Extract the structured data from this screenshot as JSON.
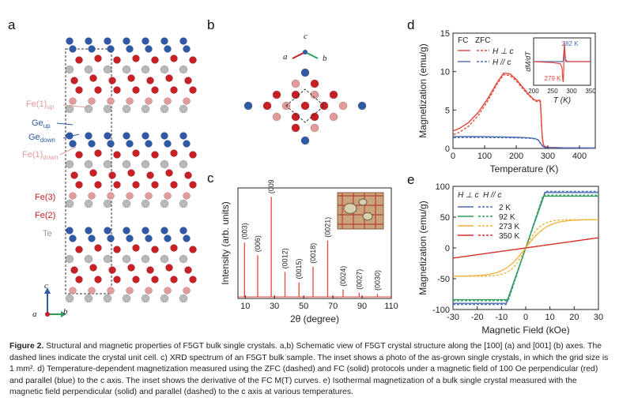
{
  "panels": {
    "a": "a",
    "b": "b",
    "c": "c",
    "d": "d",
    "e": "e"
  },
  "panel_a": {
    "labels": {
      "fe1_up": "Fe(1)",
      "fe1_up_sub": "up",
      "ge_up": "Ge",
      "ge_up_sub": "up",
      "ge_down": "Ge",
      "ge_down_sub": "down",
      "fe1_down": "Fe(1)",
      "fe1_down_sub": "down",
      "fe3": "Fe(3)",
      "fe2": "Fe(2)",
      "te": "Te"
    },
    "axes": {
      "c": "c",
      "a": "a",
      "b": "b"
    }
  },
  "panel_b": {
    "axes": {
      "c": "c",
      "a": "a",
      "b": "b"
    }
  },
  "colors": {
    "fe1": "#e39a9a",
    "fe": "#c81e24",
    "ge": "#2f5aa8",
    "te": "#b8b8b8",
    "fc_red": "#e8473a",
    "blue": "#4a6bb5",
    "green": "#2f9e5a",
    "orange": "#f2b136",
    "red350": "#d6302a",
    "xrd": "#e8473a"
  },
  "chart_data": [
    {
      "type": "bar",
      "panel": "c",
      "title": "",
      "xlabel": "2θ (degree)",
      "ylabel": "Intensity (arb. units)",
      "xlim": [
        5,
        110
      ],
      "xticks": [
        10,
        30,
        50,
        70,
        90,
        110
      ],
      "xtick_labels": [
        "10",
        "30",
        "50",
        "70",
        "90",
        "110"
      ],
      "peaks": [
        {
          "x": 9.5,
          "h": 0.52,
          "label": "(003)"
        },
        {
          "x": 18.5,
          "h": 0.4,
          "label": "(006)"
        },
        {
          "x": 27.8,
          "h": 0.96,
          "label": "(009)"
        },
        {
          "x": 37.2,
          "h": 0.24,
          "label": "(0012)"
        },
        {
          "x": 46.8,
          "h": 0.14,
          "label": "(0015)"
        },
        {
          "x": 56.4,
          "h": 0.29,
          "label": "(0018)"
        },
        {
          "x": 66.4,
          "h": 0.54,
          "label": "(0021)"
        },
        {
          "x": 77.0,
          "h": 0.07,
          "label": "(0024)"
        },
        {
          "x": 88.0,
          "h": 0.04,
          "label": "(0027)"
        },
        {
          "x": 100.5,
          "h": 0.03,
          "label": "(0030)"
        }
      ]
    },
    {
      "type": "line",
      "panel": "d",
      "xlabel": "Temperature (K)",
      "ylabel": "Magnetization (emu/g)",
      "xlim": [
        0,
        450
      ],
      "ylim": [
        0,
        15
      ],
      "xticks": [
        0,
        100,
        200,
        300,
        400
      ],
      "yticks": [
        0,
        5,
        10,
        15
      ],
      "legend": {
        "fc": "FC",
        "zfc": "ZFC",
        "perp": "H ⊥ c",
        "par": "H // c"
      },
      "series": [
        {
          "name": "H⊥c FC",
          "style": "solid",
          "color": "#e8473a",
          "x": [
            2,
            20,
            50,
            80,
            110,
            140,
            160,
            180,
            200,
            220,
            240,
            255,
            265,
            272,
            276,
            278,
            280,
            283,
            286,
            290,
            300,
            350,
            450
          ],
          "y": [
            2.3,
            2.6,
            3.4,
            4.7,
            6.5,
            8.6,
            9.8,
            9.7,
            9.0,
            8.0,
            7.0,
            6.4,
            6.2,
            6.3,
            6.2,
            5.0,
            3.0,
            1.2,
            0.5,
            0.25,
            0.15,
            0.08,
            0.05
          ]
        },
        {
          "name": "H⊥c ZFC",
          "style": "dashed",
          "color": "#e8473a",
          "x": [
            2,
            20,
            50,
            80,
            110,
            140,
            160,
            180,
            200,
            220,
            240,
            255,
            265,
            272,
            276,
            278,
            280,
            283,
            286,
            290,
            300,
            350,
            450
          ],
          "y": [
            1.8,
            2.1,
            2.9,
            4.3,
            6.2,
            8.4,
            9.6,
            9.5,
            8.8,
            7.8,
            6.9,
            6.3,
            6.1,
            6.2,
            6.1,
            4.9,
            2.9,
            1.2,
            0.5,
            0.25,
            0.15,
            0.08,
            0.05
          ]
        },
        {
          "name": "H//c FC",
          "style": "solid",
          "color": "#4a6bb5",
          "x": [
            2,
            50,
            100,
            150,
            200,
            240,
            260,
            270,
            278,
            285,
            290,
            300,
            450
          ],
          "y": [
            1.55,
            1.55,
            1.53,
            1.5,
            1.45,
            1.38,
            1.28,
            1.1,
            0.6,
            0.25,
            0.15,
            0.08,
            0.05
          ]
        },
        {
          "name": "H//c ZFC",
          "style": "dashed",
          "color": "#4a6bb5",
          "x": [
            2,
            50,
            100,
            150,
            200,
            240,
            260,
            270,
            278,
            285,
            290,
            300,
            450
          ],
          "y": [
            1.4,
            1.42,
            1.42,
            1.4,
            1.38,
            1.33,
            1.24,
            1.07,
            0.58,
            0.25,
            0.15,
            0.08,
            0.05
          ]
        }
      ],
      "inset": {
        "xlabel": "T (K)",
        "ylabel": "dM/dT",
        "xlim": [
          200,
          350
        ],
        "xticks": [
          200,
          250,
          300,
          350
        ],
        "annotations": {
          "a1": "282 K",
          "a2": "279 K"
        },
        "series": [
          {
            "name": "blue",
            "color": "#4a6bb5",
            "x": [
              200,
              250,
              270,
              276,
              278,
              280,
              282,
              283,
              284,
              286,
              290,
              300,
              350
            ],
            "y": [
              0,
              0,
              0,
              0,
              0.05,
              0.55,
              0.75,
              0.2,
              0.03,
              0,
              0,
              0,
              0
            ]
          },
          {
            "name": "red",
            "color": "#e8473a",
            "x": [
              200,
              250,
              270,
              275,
              277,
              278,
              279,
              280,
              281,
              282,
              284,
              286,
              290,
              300,
              350
            ],
            "y": [
              0,
              -0.05,
              -0.1,
              -0.3,
              -0.9,
              -1.0,
              -0.6,
              0.3,
              0.98,
              0.6,
              0.15,
              0.05,
              0,
              0,
              0
            ]
          }
        ]
      }
    },
    {
      "type": "line",
      "panel": "e",
      "xlabel": "Magnetic Field (kOe)",
      "ylabel": "Magnetization (emu/g)",
      "xlim": [
        -30,
        30
      ],
      "ylim": [
        -100,
        100
      ],
      "xticks": [
        -30,
        -20,
        -10,
        0,
        10,
        20,
        30
      ],
      "yticks": [
        -100,
        -50,
        0,
        50,
        100
      ],
      "legend": {
        "perp": "H ⊥ c",
        "par": "H // c",
        "t1": "2 K",
        "t2": "92 K",
        "t3": "273 K",
        "t4": "350 K"
      },
      "series": [
        {
          "name": "2 K",
          "color": "#4a6bb5",
          "ms": 90,
          "hsat_perp": 8,
          "hsat_par": 1.0
        },
        {
          "name": "92 K",
          "color": "#2f9e5a",
          "ms": 84,
          "hsat_perp": 7.5,
          "hsat_par": 0.9
        },
        {
          "name": "273 K",
          "color": "#f2b136",
          "ms": 46,
          "slope": true
        },
        {
          "name": "350 K",
          "color": "#d6302a",
          "linear": 0.55
        }
      ]
    }
  ],
  "caption": {
    "fig": "Figure 2.",
    "text": "Structural and magnetic properties of F5GT bulk single crystals. a,b) Schematic view of F5GT crystal structure along the [100] (a) and [001] (b) axes. The dashed lines indicate the crystal unit cell. c) XRD spectrum of an F5GT bulk sample. The inset shows a photo of the as-grown single crystals, in which the grid size is 1 mm². d) Temperature-dependent magnetization measured using the ZFC (dashed) and FC (solid) protocols under a magnetic field of 100 Oe perpendicular (red) and parallel (blue) to the c axis. The inset shows the derivative of the FC M(T) curves. e) Isothermal magnetization of a bulk single crystal measured with the magnetic field perpendicular (solid) and parallel (dashed) to the c axis at various temperatures."
  }
}
